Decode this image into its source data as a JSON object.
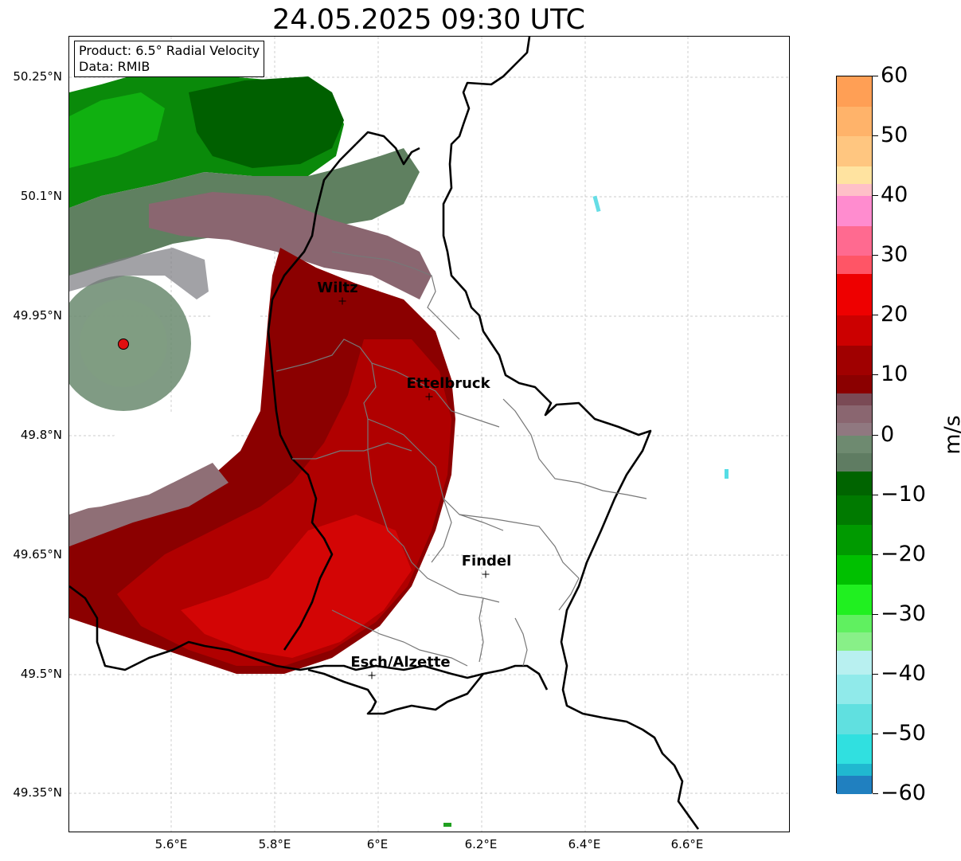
{
  "title": "24.05.2025 09:30 UTC",
  "info_box": {
    "product": "Product: 6.5° Radial Velocity",
    "data_source": "Data: RMIB"
  },
  "axes": {
    "lat_labels": [
      "50.25°N",
      "50.1°N",
      "49.95°N",
      "49.8°N",
      "49.65°N",
      "49.5°N",
      "49.35°N"
    ],
    "lon_labels": [
      "5.6°E",
      "5.8°E",
      "6°E",
      "6.2°E",
      "6.4°E",
      "6.6°E"
    ]
  },
  "cities": [
    {
      "name": "Wiltz"
    },
    {
      "name": "Ettelbruck"
    },
    {
      "name": "Findel"
    },
    {
      "name": "Esch/Alzette"
    }
  ],
  "colorbar": {
    "unit": "m/s",
    "ticks": [
      "60",
      "50",
      "40",
      "30",
      "20",
      "10",
      "0",
      "−10",
      "−20",
      "−30",
      "−40",
      "−50",
      "−60"
    ],
    "colors": {
      "orange": "#ff9f55",
      "light_orange": "#ffc680",
      "pale_yellow": "#ffe3a0",
      "pink": "#ff8ccf",
      "salmon": "#ff5566",
      "red": "#ee0000",
      "dark_red": "#8b0000",
      "muted_mauve": "#8a6670",
      "gray_green": "#6e8a70",
      "dark_green": "#006400",
      "green": "#00c000",
      "bright_green": "#20f020",
      "light_green": "#88f088",
      "pale_cyan": "#b8f0f0",
      "cyan": "#30e0e0",
      "blue": "#2080c0"
    }
  }
}
